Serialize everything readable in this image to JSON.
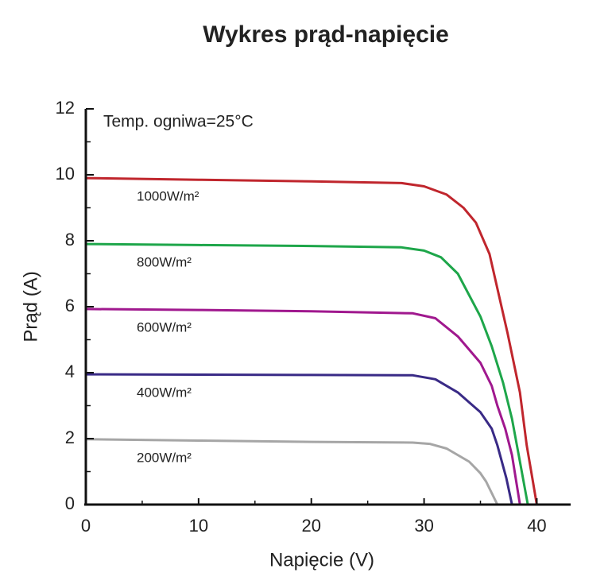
{
  "chart_data": {
    "type": "line",
    "title": "Wykres prąd-napięcie",
    "x_label": "Napięcie (V)",
    "y_label": "Prąd (A)",
    "annotation": "Temp. ogniwa=25°C",
    "xlim": [
      0,
      43
    ],
    "ylim": [
      0,
      12
    ],
    "xticks": [
      0,
      10,
      20,
      30,
      40
    ],
    "yticks": [
      0,
      2,
      4,
      6,
      8,
      10,
      12
    ],
    "xminorticks": [
      5,
      15,
      25,
      35
    ],
    "yminorticks": [
      1,
      3,
      5,
      7,
      9,
      11
    ],
    "series": [
      {
        "name": "1000W/m²",
        "color": "#c0262d",
        "x": [
          0,
          10,
          20,
          28,
          30,
          32,
          33.5,
          34.6,
          35.8,
          37.4,
          38.5,
          39.1,
          39.6,
          40
        ],
        "values": [
          9.9,
          9.85,
          9.8,
          9.75,
          9.65,
          9.4,
          9.0,
          8.55,
          7.6,
          5.2,
          3.4,
          1.8,
          0.8,
          0
        ]
      },
      {
        "name": "800W/m²",
        "color": "#1ea64a",
        "x": [
          0,
          10,
          20,
          28,
          30,
          31.5,
          33,
          35,
          36,
          37,
          37.8,
          38.5,
          39.2
        ],
        "values": [
          7.9,
          7.87,
          7.84,
          7.8,
          7.7,
          7.5,
          7.0,
          5.7,
          4.8,
          3.7,
          2.6,
          1.3,
          0
        ]
      },
      {
        "name": "600W/m²",
        "color": "#a0188e",
        "x": [
          0,
          10,
          20,
          29,
          31,
          33,
          35,
          36,
          36.5,
          37.2,
          37.8,
          38.5
        ],
        "values": [
          5.93,
          5.9,
          5.86,
          5.8,
          5.65,
          5.1,
          4.3,
          3.6,
          3.0,
          2.3,
          1.5,
          0
        ]
      },
      {
        "name": "400W/m²",
        "color": "#392a86",
        "x": [
          0,
          10,
          20,
          29,
          31,
          33,
          35,
          36,
          36.5,
          37.3,
          37.8
        ],
        "values": [
          3.95,
          3.94,
          3.93,
          3.92,
          3.8,
          3.4,
          2.8,
          2.3,
          1.8,
          0.8,
          0
        ]
      },
      {
        "name": "200W/m²",
        "color": "#a6a6a6",
        "x": [
          0,
          10,
          20,
          29,
          30.5,
          32,
          34,
          35,
          35.5,
          36.5
        ],
        "values": [
          1.98,
          1.94,
          1.9,
          1.88,
          1.84,
          1.7,
          1.3,
          0.95,
          0.7,
          0
        ]
      }
    ]
  }
}
